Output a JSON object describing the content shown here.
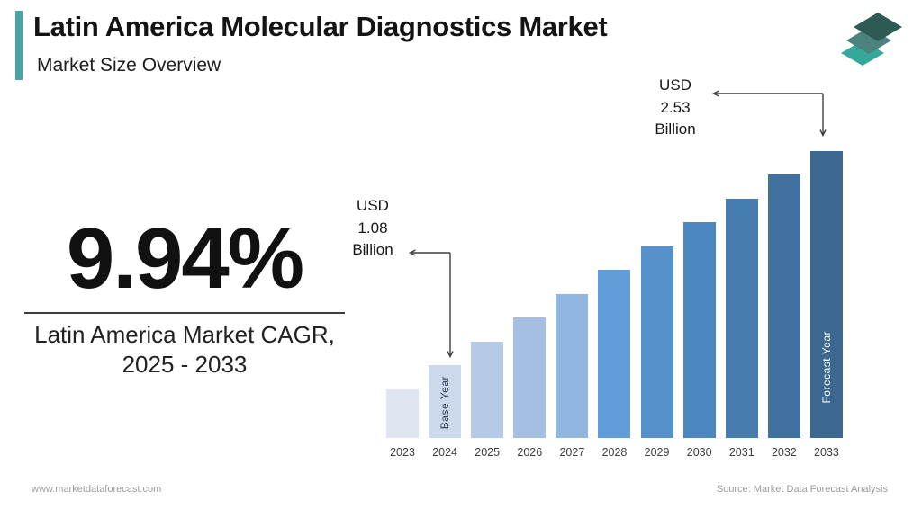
{
  "header": {
    "title": "Latin America Molecular Diagnostics Market",
    "subtitle": "Market Size Overview",
    "accent_color": "#47a5a6",
    "logo_layer_colors": [
      "#2d5b53",
      "#4c837c",
      "#35a89b"
    ]
  },
  "stat": {
    "value": "9.94%",
    "label_line1": "Latin America Market CAGR,",
    "label_line2": "2025 - 2033"
  },
  "annotations": {
    "base": {
      "line1": "USD",
      "line2": "1.08",
      "line3": "Billion",
      "target_year": "2024"
    },
    "forecast": {
      "line1": "USD",
      "line2": "2.53",
      "line3": "Billion",
      "target_year": "2033"
    }
  },
  "chart_data": {
    "type": "bar",
    "title": "Latin America Molecular Diagnostics Market Size",
    "unit": "USD Billion",
    "categories": [
      "2023",
      "2024",
      "2025",
      "2026",
      "2027",
      "2028",
      "2029",
      "2030",
      "2031",
      "2032",
      "2033"
    ],
    "values": [
      0.98,
      1.08,
      1.19,
      1.31,
      1.44,
      1.58,
      1.74,
      1.91,
      2.1,
      2.31,
      2.53
    ],
    "labeled_points": [
      {
        "year": "2024",
        "value": 1.08,
        "label": "USD 1.08 Billion"
      },
      {
        "year": "2033",
        "value": 2.53,
        "label": "USD 2.53 Billion"
      }
    ],
    "cagr_percent": 9.94,
    "cagr_period": "2025 - 2033",
    "bar_colors": [
      "#dfe6f1",
      "#ccd8eb",
      "#b6cae7",
      "#a5bfe2",
      "#90b5df",
      "#5f9cd8",
      "#5591cb",
      "#4b87c1",
      "#467cb0",
      "#41719e",
      "#3c6890"
    ],
    "bar_inner_labels": {
      "2024": "Base Year",
      "2033": "Forecast Year"
    },
    "xlabel": "",
    "ylabel": "",
    "y_axis_visible": false,
    "gridlines": false,
    "legend": "none"
  },
  "footer": {
    "website": "www.marketdataforecast.com",
    "source": "Source: Market Data Forecast Analysis"
  }
}
